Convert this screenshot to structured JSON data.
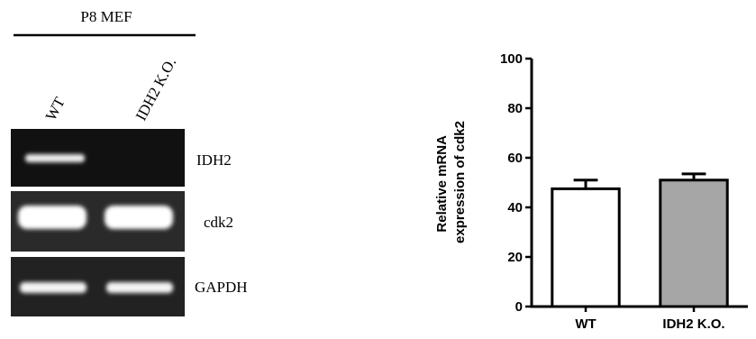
{
  "gel": {
    "header": "P8 MEF",
    "lanes": [
      "WT",
      "IDH2 K.O."
    ],
    "bands": [
      "IDH2",
      "cdk2",
      "GAPDH"
    ]
  },
  "chart_data": {
    "type": "bar",
    "ylabel": [
      "Relative mRNA",
      "expression of cdk2"
    ],
    "categories": [
      "WT",
      "IDH2 K.O."
    ],
    "values": [
      47.5,
      51
    ],
    "errors": [
      3.5,
      2.5
    ],
    "colors": [
      "#ffffff",
      "#a6a6a6"
    ],
    "ylim": [
      0,
      100
    ],
    "yticks": [
      0,
      20,
      40,
      60,
      80,
      100
    ]
  }
}
